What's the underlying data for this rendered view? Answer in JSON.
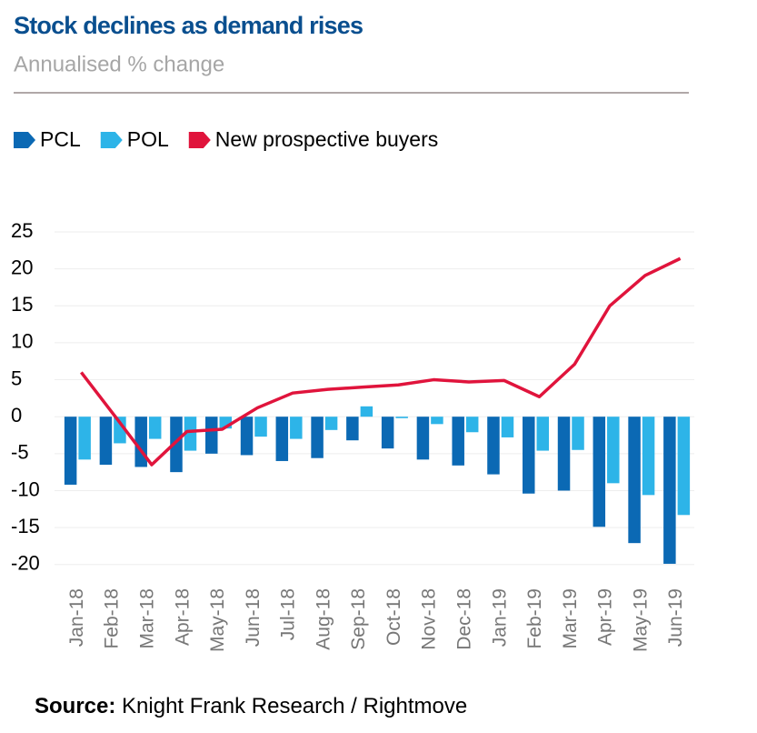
{
  "chart_data": {
    "type": "bar_line",
    "title": "Stock declines as demand rises",
    "subtitle": "Annualised % change",
    "categories": [
      "Jan-18",
      "Feb-18",
      "Mar-18",
      "Apr-18",
      "May-18",
      "Jun-18",
      "Jul-18",
      "Aug-18",
      "Sep-18",
      "Oct-18",
      "Nov-18",
      "Dec-18",
      "Jan-19",
      "Feb-19",
      "Mar-19",
      "Apr-19",
      "May-19",
      "Jun-19"
    ],
    "series": [
      {
        "name": "PCL",
        "type": "bar",
        "color": "#0b69b4",
        "values": [
          -9.2,
          -6.5,
          -6.8,
          -7.5,
          -5,
          -5.2,
          -6,
          -5.6,
          -3.2,
          -4.3,
          -5.8,
          -6.6,
          -7.8,
          -10.4,
          -10,
          -14.9,
          -17.1,
          -19.9
        ]
      },
      {
        "name": "POL",
        "type": "bar",
        "color": "#2db4e8",
        "values": [
          -5.8,
          -3.6,
          -3,
          -4.6,
          -1.6,
          -2.7,
          -3,
          -1.8,
          1.4,
          -0.2,
          -1,
          -2.1,
          -2.8,
          -4.6,
          -4.5,
          -9,
          -10.6,
          -13.3
        ]
      },
      {
        "name": "New prospective buyers",
        "type": "line",
        "color": "#e0143c",
        "values": [
          6,
          -0.2,
          -6.5,
          -2,
          -1.7,
          1.2,
          3.2,
          3.7,
          4,
          4.3,
          5,
          4.7,
          4.9,
          2.7,
          7.1,
          15,
          19.1,
          21.4
        ]
      }
    ],
    "ylim": [
      -22,
      25
    ],
    "yticks": [
      25,
      20,
      15,
      10,
      5,
      0,
      -5,
      -10,
      -15,
      -20
    ],
    "grid": true,
    "source_label": "Source:",
    "source": "Knight Frank Research / Rightmove"
  }
}
